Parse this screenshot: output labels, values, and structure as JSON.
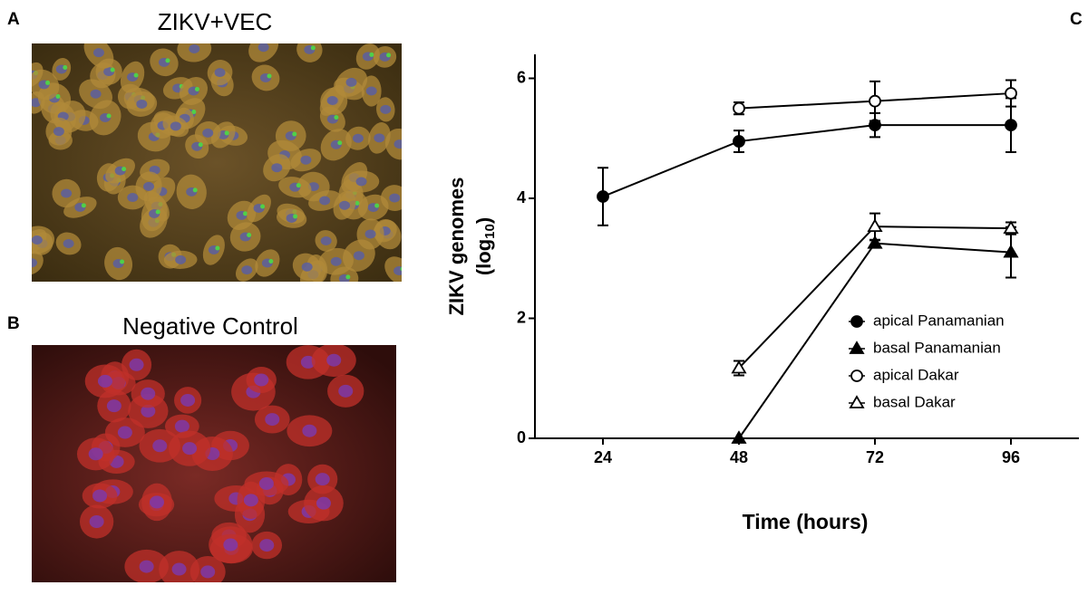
{
  "panels": [
    {
      "label": "A",
      "title": "ZIKV+VEC"
    },
    {
      "label": "B",
      "title": "Negative Control"
    }
  ],
  "chart_data": {
    "type": "line",
    "panel_label": "C",
    "ylabel_line1": "ZIKV genomes",
    "ylabel_line2": [
      "(log",
      "10",
      ")"
    ],
    "xlabel": "Time (hours)",
    "x": [
      24,
      48,
      72,
      96
    ],
    "xlim": [
      12,
      108
    ],
    "xticks": [
      24,
      48,
      72,
      96
    ],
    "ylim": [
      0,
      6.4
    ],
    "yticks": [
      0,
      2,
      4,
      6
    ],
    "legend": "center right",
    "series": [
      {
        "name": "apical Panamanian",
        "color": "#000000",
        "marker": "circle",
        "filled": true,
        "values": [
          4.03,
          4.95,
          5.22,
          5.22
        ],
        "errors": [
          0.48,
          0.18,
          0.2,
          0.45
        ]
      },
      {
        "name": "basal Panamanian",
        "color": "#000000",
        "marker": "triangle",
        "filled": true,
        "values": [
          null,
          0,
          3.25,
          3.1
        ],
        "errors": [
          null,
          0,
          0.05,
          0.42
        ]
      },
      {
        "name": "apical Dakar",
        "color": "#000000",
        "marker": "circle",
        "filled": false,
        "values": [
          null,
          5.5,
          5.62,
          5.75
        ],
        "errors": [
          null,
          0.1,
          0.33,
          0.22
        ]
      },
      {
        "name": "basal Dakar",
        "color": "#000000",
        "marker": "triangle",
        "filled": false,
        "values": [
          null,
          1.17,
          3.53,
          3.5
        ],
        "errors": [
          null,
          0.12,
          0.22,
          0.1
        ]
      }
    ]
  }
}
